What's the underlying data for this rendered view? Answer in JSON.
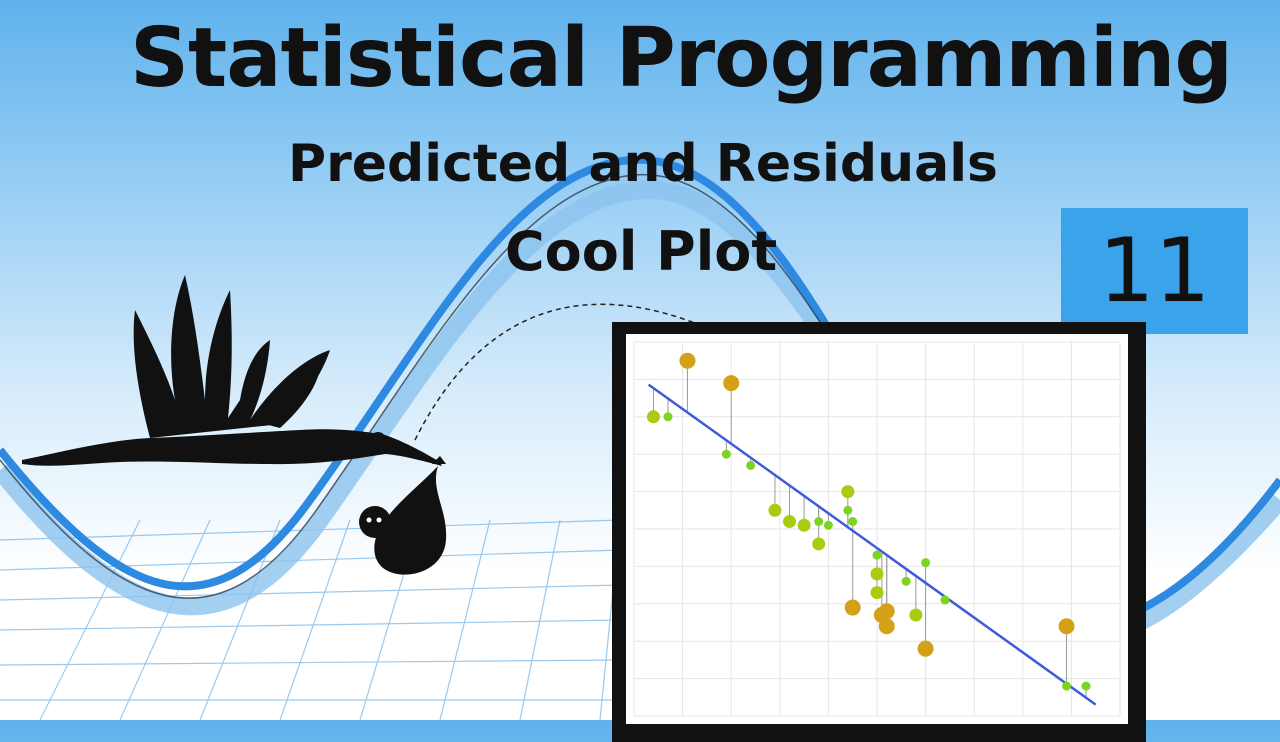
{
  "header": {
    "title": "Statistical Programming",
    "subtitle": "Predicted and Residuals",
    "subtitle2": "Cool Plot",
    "episode_number": "11"
  },
  "colors": {
    "episode_badge": "#3aa3ea",
    "regression_line": "#3b5bdb",
    "small_residual": "#7ed321",
    "medium_residual": "#d4a017",
    "large_residual": "#f04a1a",
    "wave": "#3d98e0"
  },
  "icons": [
    "stork-icon",
    "baby-bundle-icon"
  ],
  "chart_data": {
    "type": "scatter",
    "title": "",
    "xlabel": "",
    "ylabel": "",
    "xlim": [
      0,
      10
    ],
    "ylim": [
      0,
      10
    ],
    "grid": true,
    "regression_line": {
      "slope": -0.93,
      "intercept": 9.14
    },
    "points": [
      {
        "x": 0.4,
        "y": 8.0
      },
      {
        "x": 0.7,
        "y": 8.0
      },
      {
        "x": 1.1,
        "y": 9.5
      },
      {
        "x": 1.9,
        "y": 7.0
      },
      {
        "x": 2.0,
        "y": 8.9
      },
      {
        "x": 2.4,
        "y": 6.7
      },
      {
        "x": 2.9,
        "y": 5.5
      },
      {
        "x": 3.2,
        "y": 5.2
      },
      {
        "x": 3.5,
        "y": 5.1
      },
      {
        "x": 3.8,
        "y": 4.6
      },
      {
        "x": 3.8,
        "y": 5.2
      },
      {
        "x": 4.0,
        "y": 5.1
      },
      {
        "x": 4.4,
        "y": 5.5
      },
      {
        "x": 4.4,
        "y": 6.0
      },
      {
        "x": 4.5,
        "y": 2.9
      },
      {
        "x": 4.5,
        "y": 5.2
      },
      {
        "x": 5.0,
        "y": 4.3
      },
      {
        "x": 5.0,
        "y": 3.8
      },
      {
        "x": 5.0,
        "y": 3.3
      },
      {
        "x": 5.1,
        "y": 2.7
      },
      {
        "x": 5.2,
        "y": 2.8
      },
      {
        "x": 5.2,
        "y": 2.4
      },
      {
        "x": 5.6,
        "y": 3.6
      },
      {
        "x": 5.8,
        "y": 2.7
      },
      {
        "x": 6.0,
        "y": 4.1
      },
      {
        "x": 6.0,
        "y": 1.8
      },
      {
        "x": 6.4,
        "y": 3.1
      },
      {
        "x": 8.9,
        "y": 2.4
      },
      {
        "x": 8.9,
        "y": 0.8
      },
      {
        "x": 9.3,
        "y": 0.8
      }
    ]
  }
}
